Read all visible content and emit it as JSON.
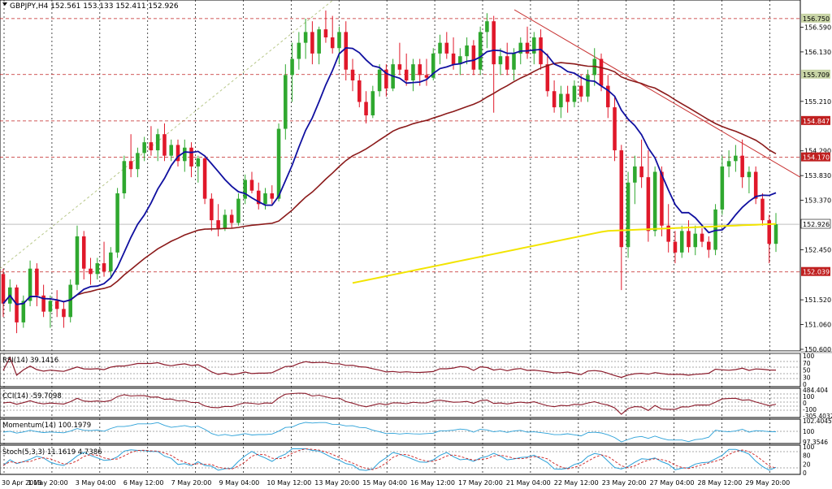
{
  "window": {
    "symbol_header": "GBPJPY,H4  152.561 153.133 152.411 152.926",
    "menu_icon": "triangle-down-icon"
  },
  "colors": {
    "bull": "#2fa82f",
    "bear": "#e0182a",
    "ma_fast": "#1010a0",
    "ma_mid": "#8b1a1a",
    "ma_slow": "#f2e400",
    "trendline": "#c83232",
    "channel_line": "#b8c88a",
    "level_line": "#c02020",
    "grid": "#222222",
    "oscillator_main": "#8b1a2a",
    "momentum": "#2aa0d8",
    "stoch_signal": "#cc2020"
  },
  "main_panel": {
    "price_axis_ticks": [
      "156.590",
      "156.130",
      "155.210",
      "154.290",
      "153.830",
      "153.370",
      "152.450",
      "151.520",
      "151.060",
      "150.600"
    ],
    "level_labels": [
      "156.750",
      "155.709",
      "154.847",
      "154.170",
      "152.926",
      "152.039"
    ],
    "current_price": "152.926",
    "range": [
      150.6,
      157.05
    ]
  },
  "time_axis": [
    "30 Apr 2013",
    "1 May 20:00",
    "3 May 04:00",
    "6 May 12:00",
    "7 May 20:00",
    "9 May 04:00",
    "10 May 12:00",
    "13 May 20:00",
    "15 May 04:00",
    "16 May 12:00",
    "17 May 20:00",
    "21 May 04:00",
    "22 May 12:00",
    "23 May 20:00",
    "27 May 04:00",
    "28 May 12:00",
    "29 May 20:00"
  ],
  "subpanels": [
    {
      "title": "RSI(14) 39.1416",
      "ticks": [
        "100",
        "70",
        "50",
        "30",
        "0"
      ]
    },
    {
      "title": "CCI(14) -59.7098",
      "ticks": [
        "484.404",
        "100",
        "0",
        "-100",
        "-305.4032"
      ]
    },
    {
      "title": "Momentum(14) 100.1979",
      "ticks": [
        "102.4045",
        "100",
        "97.3546"
      ]
    },
    {
      "title": "Stoch(5,3,3) 11.1619 4.7386",
      "ticks": [
        "100",
        "80",
        "20",
        "0"
      ]
    }
  ],
  "chart_data": {
    "type": "candlestick",
    "symbol": "GBPJPY",
    "timeframe": "H4",
    "last_bar": {
      "open": 152.561,
      "high": 153.133,
      "low": 152.411,
      "close": 152.926
    },
    "horizontal_levels": [
      156.75,
      155.709,
      154.847,
      154.17,
      152.039
    ],
    "candles_ohlc": [
      [
        152.0,
        152.1,
        151.2,
        151.45
      ],
      [
        151.45,
        151.9,
        151.3,
        151.75
      ],
      [
        151.75,
        151.8,
        150.9,
        151.1
      ],
      [
        151.1,
        151.6,
        151.0,
        151.5
      ],
      [
        151.5,
        152.25,
        151.4,
        152.1
      ],
      [
        152.1,
        152.2,
        151.4,
        151.6
      ],
      [
        151.6,
        151.8,
        151.2,
        151.3
      ],
      [
        151.3,
        151.6,
        151.0,
        151.5
      ],
      [
        151.5,
        151.7,
        151.2,
        151.35
      ],
      [
        151.35,
        151.5,
        151.0,
        151.2
      ],
      [
        151.2,
        151.9,
        151.1,
        151.8
      ],
      [
        151.8,
        152.9,
        151.7,
        152.7
      ],
      [
        152.7,
        152.8,
        151.9,
        152.1
      ],
      [
        152.1,
        152.3,
        151.8,
        152.0
      ],
      [
        152.0,
        152.3,
        151.9,
        152.2
      ],
      [
        152.2,
        152.6,
        151.95,
        152.05
      ],
      [
        152.05,
        152.5,
        151.95,
        152.4
      ],
      [
        152.4,
        153.6,
        152.3,
        153.5
      ],
      [
        153.5,
        154.2,
        153.4,
        154.1
      ],
      [
        154.1,
        154.6,
        153.8,
        153.95
      ],
      [
        153.95,
        154.35,
        153.8,
        154.25
      ],
      [
        154.25,
        154.55,
        154.1,
        154.45
      ],
      [
        154.45,
        154.75,
        154.2,
        154.3
      ],
      [
        154.3,
        154.7,
        154.1,
        154.6
      ],
      [
        154.6,
        154.8,
        154.1,
        154.2
      ],
      [
        154.2,
        154.5,
        154.1,
        154.4
      ],
      [
        154.4,
        154.5,
        154.0,
        154.1
      ],
      [
        154.1,
        154.5,
        153.9,
        154.35
      ],
      [
        154.35,
        154.45,
        153.8,
        154.0
      ],
      [
        154.0,
        154.2,
        153.7,
        154.15
      ],
      [
        154.15,
        154.2,
        153.3,
        153.4
      ],
      [
        153.4,
        153.5,
        152.8,
        153.0
      ],
      [
        153.0,
        153.3,
        152.7,
        152.85
      ],
      [
        152.85,
        153.2,
        152.8,
        153.1
      ],
      [
        153.1,
        153.2,
        152.85,
        152.95
      ],
      [
        152.95,
        153.5,
        152.9,
        153.4
      ],
      [
        153.4,
        153.85,
        153.3,
        153.75
      ],
      [
        153.75,
        153.9,
        153.5,
        153.55
      ],
      [
        153.55,
        153.7,
        153.2,
        153.3
      ],
      [
        153.3,
        153.6,
        153.2,
        153.5
      ],
      [
        153.5,
        153.65,
        153.3,
        153.4
      ],
      [
        153.4,
        154.8,
        153.35,
        154.7
      ],
      [
        154.7,
        155.9,
        154.5,
        155.7
      ],
      [
        155.7,
        156.3,
        155.2,
        156.0
      ],
      [
        156.0,
        156.5,
        155.8,
        156.3
      ],
      [
        156.3,
        156.75,
        156.0,
        156.5
      ],
      [
        156.5,
        156.7,
        155.9,
        156.1
      ],
      [
        156.1,
        156.6,
        155.9,
        156.55
      ],
      [
        156.55,
        156.9,
        156.3,
        156.4
      ],
      [
        156.4,
        156.8,
        156.1,
        156.2
      ],
      [
        156.2,
        156.6,
        155.9,
        156.5
      ],
      [
        156.5,
        156.7,
        155.6,
        155.8
      ],
      [
        155.8,
        156.0,
        155.4,
        155.6
      ],
      [
        155.6,
        155.7,
        155.1,
        155.2
      ],
      [
        155.2,
        155.4,
        154.8,
        154.95
      ],
      [
        154.95,
        155.5,
        154.9,
        155.4
      ],
      [
        155.4,
        155.9,
        155.3,
        155.8
      ],
      [
        155.8,
        155.9,
        155.3,
        155.45
      ],
      [
        155.45,
        156.0,
        155.4,
        155.9
      ],
      [
        155.9,
        156.3,
        155.7,
        155.8
      ],
      [
        155.8,
        156.1,
        155.5,
        155.6
      ],
      [
        155.6,
        156.0,
        155.4,
        155.9
      ],
      [
        155.9,
        156.0,
        155.5,
        155.7
      ],
      [
        155.7,
        156.0,
        155.5,
        155.65
      ],
      [
        155.65,
        156.2,
        155.6,
        156.1
      ],
      [
        156.1,
        156.45,
        155.9,
        156.3
      ],
      [
        156.3,
        156.5,
        156.0,
        156.1
      ],
      [
        156.1,
        156.4,
        155.8,
        155.9
      ],
      [
        155.9,
        156.2,
        155.7,
        156.05
      ],
      [
        156.05,
        156.4,
        155.9,
        156.25
      ],
      [
        156.25,
        156.35,
        155.7,
        155.8
      ],
      [
        155.8,
        156.6,
        155.7,
        156.5
      ],
      [
        156.5,
        156.85,
        156.2,
        156.7
      ],
      [
        156.7,
        156.8,
        155.0,
        155.9
      ],
      [
        155.9,
        156.2,
        155.7,
        156.05
      ],
      [
        156.05,
        156.3,
        155.7,
        155.8
      ],
      [
        155.8,
        156.2,
        155.6,
        156.1
      ],
      [
        156.1,
        156.4,
        155.9,
        156.3
      ],
      [
        156.3,
        156.6,
        156.0,
        156.1
      ],
      [
        156.1,
        156.5,
        155.9,
        156.4
      ],
      [
        156.4,
        156.55,
        155.8,
        155.9
      ],
      [
        155.9,
        156.1,
        155.3,
        155.4
      ],
      [
        155.4,
        155.6,
        155.0,
        155.1
      ],
      [
        155.1,
        155.5,
        154.9,
        155.35
      ],
      [
        155.35,
        155.5,
        155.0,
        155.2
      ],
      [
        155.2,
        155.6,
        155.1,
        155.5
      ],
      [
        155.5,
        155.7,
        155.2,
        155.3
      ],
      [
        155.3,
        155.8,
        155.2,
        155.7
      ],
      [
        155.7,
        156.2,
        155.5,
        156.0
      ],
      [
        156.0,
        156.1,
        155.4,
        155.5
      ],
      [
        155.5,
        155.7,
        154.9,
        155.1
      ],
      [
        155.1,
        155.3,
        154.1,
        154.3
      ],
      [
        154.3,
        154.4,
        151.7,
        152.5
      ],
      [
        152.5,
        153.9,
        152.3,
        153.7
      ],
      [
        153.7,
        154.2,
        153.3,
        154.0
      ],
      [
        154.0,
        154.5,
        153.6,
        153.8
      ],
      [
        153.8,
        154.3,
        152.6,
        152.8
      ],
      [
        152.8,
        154.0,
        152.7,
        153.9
      ],
      [
        153.9,
        154.0,
        152.7,
        152.9
      ],
      [
        152.9,
        153.3,
        152.4,
        152.6
      ],
      [
        152.6,
        152.8,
        152.2,
        152.4
      ],
      [
        152.4,
        152.9,
        152.3,
        152.8
      ],
      [
        152.8,
        153.0,
        152.4,
        152.5
      ],
      [
        152.5,
        152.9,
        152.35,
        152.75
      ],
      [
        152.75,
        152.85,
        152.5,
        152.6
      ],
      [
        152.6,
        152.7,
        152.3,
        152.45
      ],
      [
        152.45,
        153.3,
        152.35,
        153.2
      ],
      [
        153.2,
        154.2,
        153.1,
        154.0
      ],
      [
        154.0,
        154.3,
        153.8,
        154.1
      ],
      [
        154.1,
        154.4,
        153.9,
        154.2
      ],
      [
        154.2,
        154.5,
        153.6,
        153.8
      ],
      [
        153.8,
        154.0,
        153.5,
        153.9
      ],
      [
        153.9,
        154.0,
        153.3,
        153.4
      ],
      [
        153.4,
        153.5,
        152.9,
        153.0
      ],
      [
        153.0,
        153.1,
        152.2,
        152.56
      ],
      [
        152.561,
        153.133,
        152.411,
        152.926
      ]
    ]
  }
}
